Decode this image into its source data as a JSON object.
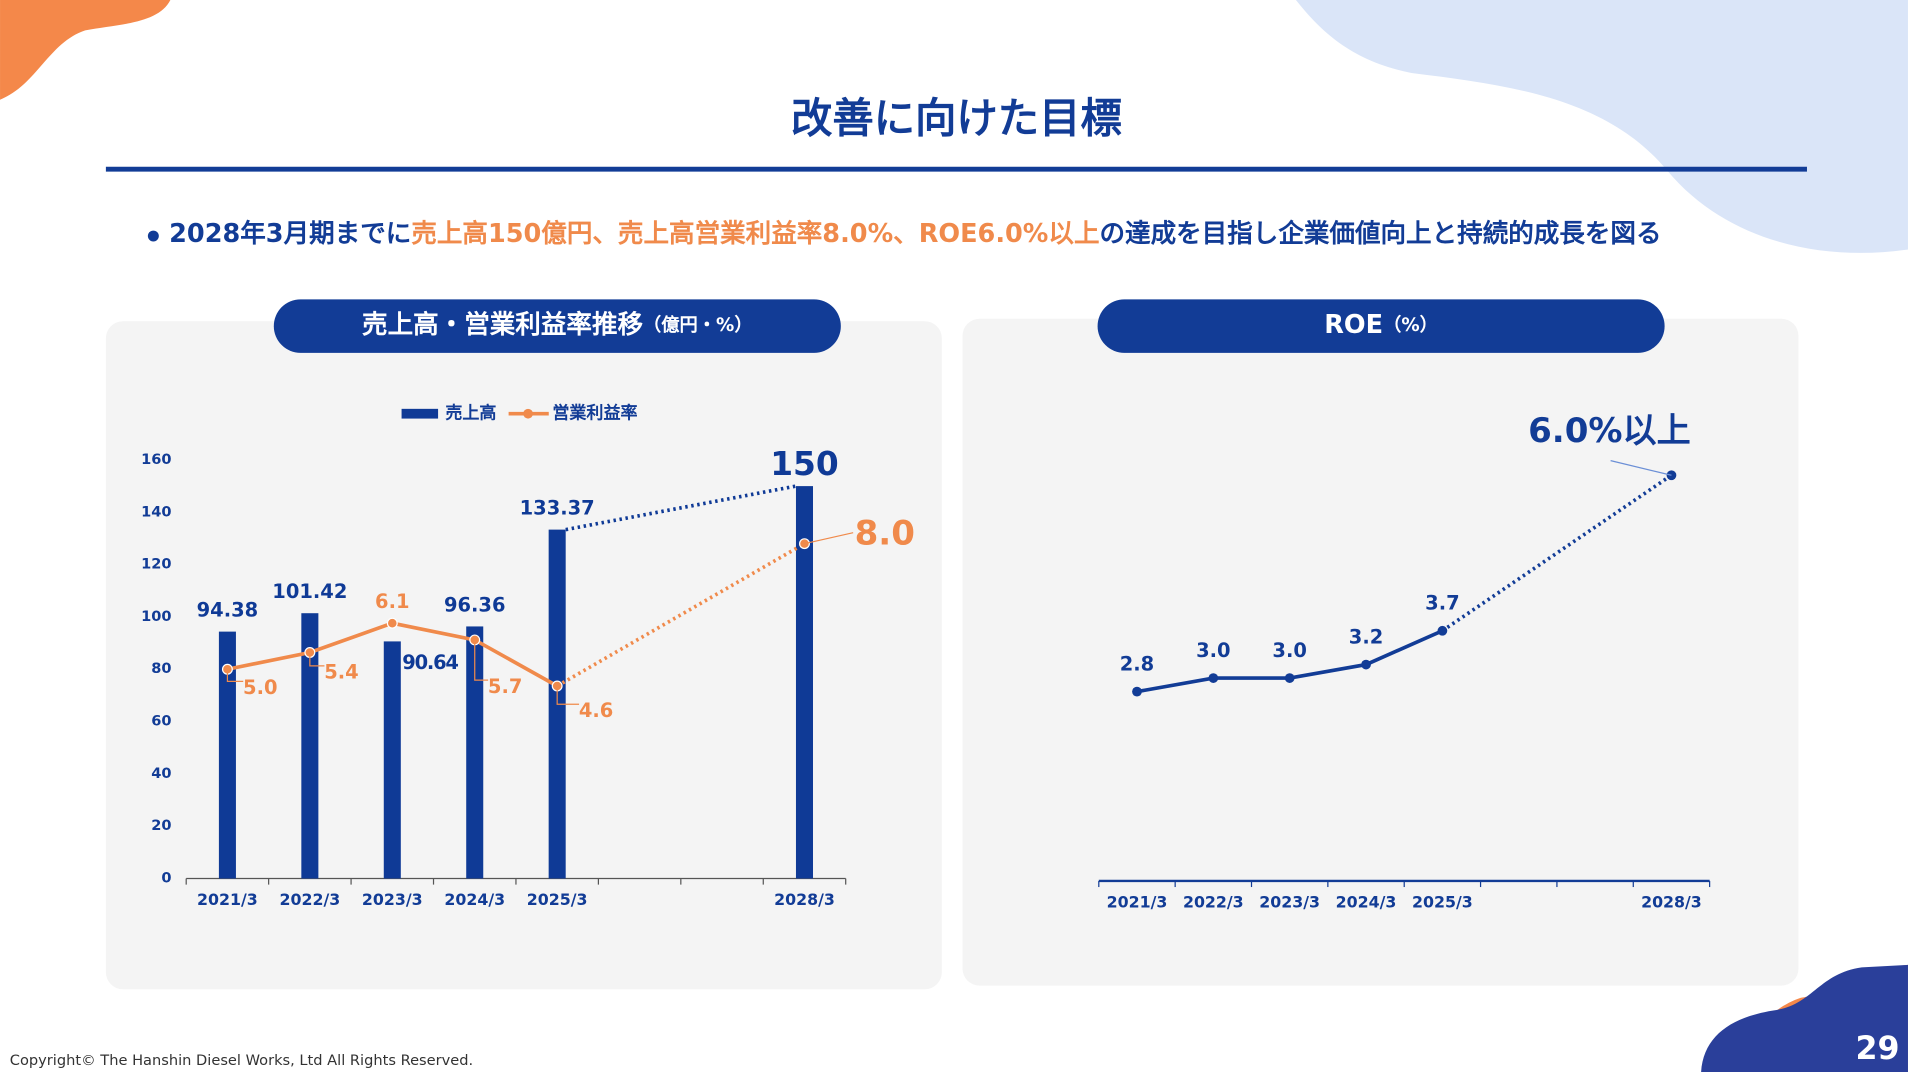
{
  "slide": {
    "title": "改善に向けた目標",
    "bullet": [
      "2028年3月期までに",
      "売上高150億円、売上高営業利益率8.0%、ROE6.0%以上",
      "の達成を目指し企業価値向上と持続的成長を図る"
    ],
    "copyright": "Copyright© The Hanshin Diesel Works, Ltd All Rights Reserved.",
    "page_number": "29"
  },
  "chart_data": [
    {
      "type": "bar",
      "title": "売上高・営業利益率推移",
      "subtitle": "（億円・%）",
      "legend": "top",
      "categories": [
        "2021/3",
        "2022/3",
        "2023/3",
        "2024/3",
        "2025/3",
        null,
        null,
        "2028/3"
      ],
      "ylim": [
        0,
        160
      ],
      "yticks": [
        0,
        20,
        40,
        60,
        80,
        100,
        120,
        140,
        160
      ],
      "y2lim": [
        0,
        10
      ],
      "series": [
        {
          "name": "売上高",
          "color": "#0f3a96",
          "values": [
            94.38,
            101.42,
            90.64,
            96.36,
            133.37,
            null,
            null,
            150
          ]
        },
        {
          "name": "営業利益率",
          "type": "line",
          "axis": "y2",
          "color": "#f08a4b",
          "values": [
            5.0,
            5.4,
            6.1,
            5.7,
            4.6,
            null,
            null,
            8.0
          ],
          "value_labels": [
            "5.0",
            "5.4",
            "6.1",
            "5.7",
            "4.6",
            null,
            null,
            "8.0"
          ]
        }
      ]
    },
    {
      "type": "line",
      "title": "ROE",
      "subtitle": "（%）",
      "categories": [
        "2021/3",
        "2022/3",
        "2023/3",
        "2024/3",
        "2025/3",
        null,
        null,
        "2028/3"
      ],
      "ylim": [
        0,
        7
      ],
      "series": [
        {
          "name": "ROE",
          "color": "#123c96",
          "values": [
            2.8,
            3.0,
            3.0,
            3.2,
            3.7,
            null,
            null,
            6.0
          ],
          "value_labels": [
            "2.8",
            "3.0",
            "3.0",
            "3.2",
            "3.7",
            null,
            null,
            "6.0%以上"
          ]
        }
      ]
    }
  ]
}
